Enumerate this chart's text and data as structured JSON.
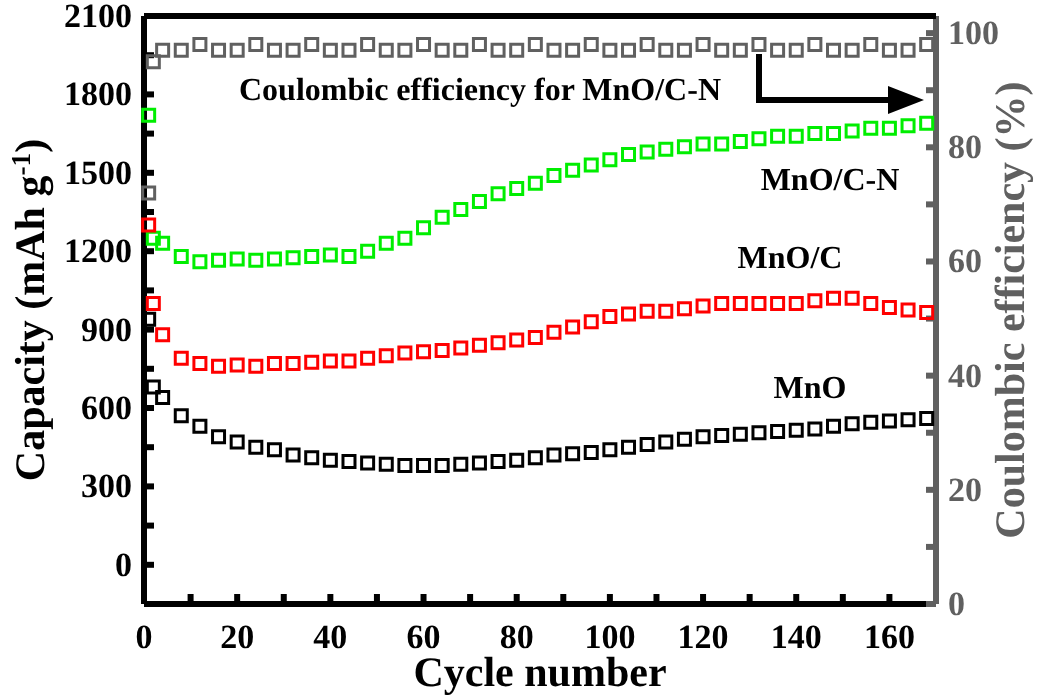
{
  "chart_data": {
    "type": "scatter",
    "xlabel": "Cycle number",
    "ylabel": "Capacity (mAh g$^{-1}$)",
    "y2label": "Coulombic efficiency (%)",
    "marker": "square",
    "grid": false,
    "x": [
      1,
      2,
      4,
      8,
      12,
      16,
      20,
      24,
      28,
      32,
      36,
      40,
      44,
      48,
      52,
      56,
      60,
      64,
      68,
      72,
      76,
      80,
      84,
      88,
      92,
      96,
      100,
      104,
      108,
      112,
      116,
      120,
      124,
      128,
      132,
      136,
      140,
      144,
      148,
      152,
      156,
      160,
      164,
      168
    ],
    "xlim": [
      0,
      170
    ],
    "xticks": [
      0,
      {
        "value": 10,
        "label": null
      },
      20,
      {
        "value": 30,
        "label": null
      },
      40,
      {
        "value": 50,
        "label": null
      },
      60,
      {
        "value": 70,
        "label": null
      },
      80,
      {
        "value": 90,
        "label": null
      },
      100,
      {
        "value": 110,
        "label": null
      },
      120,
      {
        "value": 130,
        "label": null
      },
      140,
      {
        "value": 150,
        "label": null
      },
      160
    ],
    "ylim": [
      -150,
      2100
    ],
    "yticks": [
      0,
      {
        "value": 150,
        "label": null
      },
      300,
      {
        "value": 450,
        "label": null
      },
      600,
      {
        "value": 750,
        "label": null
      },
      900,
      {
        "value": 1050,
        "label": null
      },
      1200,
      {
        "value": 1350,
        "label": null
      },
      1500,
      {
        "value": 1650,
        "label": null
      },
      1800,
      {
        "value": 1950,
        "label": null
      },
      2100
    ],
    "y2lim": [
      0,
      103
    ],
    "y2ticks": [
      0,
      {
        "value": 10,
        "label": null
      },
      20,
      {
        "value": 30,
        "label": null
      },
      40,
      {
        "value": 50,
        "label": null
      },
      60,
      {
        "value": 70,
        "label": null
      },
      80,
      {
        "value": 90,
        "label": null
      },
      100
    ],
    "series": [
      {
        "name": "Coulombic efficiency for MnO/C-N",
        "color": "#606060",
        "axis": "y2",
        "values": [
          72,
          95,
          97,
          97,
          98,
          97,
          97,
          98,
          97,
          97,
          98,
          97,
          97,
          98,
          97,
          97,
          98,
          97,
          97,
          98,
          97,
          97,
          98,
          97,
          97,
          98,
          97,
          97,
          98,
          97,
          97,
          98,
          97,
          97,
          98,
          97,
          97,
          98,
          97,
          97,
          98,
          97,
          97,
          98
        ]
      },
      {
        "name": "MnO/C-N",
        "color": "#00ee00",
        "values": [
          1720,
          1250,
          1230,
          1180,
          1160,
          1165,
          1170,
          1165,
          1170,
          1175,
          1180,
          1185,
          1180,
          1200,
          1230,
          1250,
          1290,
          1330,
          1360,
          1390,
          1420,
          1440,
          1460,
          1490,
          1510,
          1530,
          1550,
          1570,
          1580,
          1590,
          1600,
          1610,
          1610,
          1620,
          1630,
          1640,
          1640,
          1650,
          1650,
          1660,
          1670,
          1670,
          1680,
          1690
        ]
      },
      {
        "name": "MnO/C",
        "color": "#ff0000",
        "values": [
          1300,
          1000,
          880,
          790,
          770,
          760,
          765,
          760,
          770,
          770,
          775,
          780,
          780,
          790,
          800,
          810,
          815,
          820,
          830,
          840,
          850,
          860,
          870,
          890,
          910,
          930,
          950,
          960,
          970,
          970,
          980,
          990,
          1000,
          1000,
          1000,
          1000,
          1000,
          1010,
          1020,
          1020,
          1000,
          985,
          975,
          965
        ]
      },
      {
        "name": "MnO",
        "color": "#000000",
        "values": [
          940,
          680,
          640,
          570,
          530,
          490,
          470,
          450,
          440,
          420,
          410,
          400,
          395,
          390,
          385,
          380,
          380,
          380,
          385,
          390,
          395,
          400,
          410,
          420,
          425,
          430,
          440,
          450,
          460,
          470,
          480,
          490,
          495,
          500,
          505,
          510,
          515,
          520,
          530,
          540,
          545,
          550,
          555,
          560
        ]
      }
    ]
  }
}
